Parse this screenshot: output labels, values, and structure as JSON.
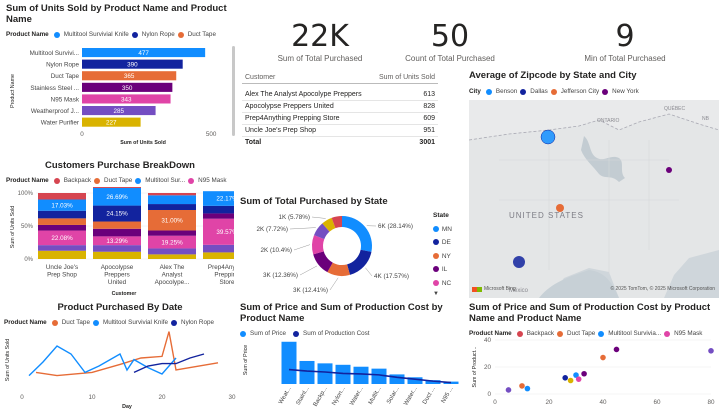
{
  "colors": {
    "multitool": "#118dff",
    "nylon": "#12239e",
    "duct": "#e66c37",
    "stainless": "#6b007b",
    "n95": "#e044a7",
    "weatherproof": "#744ec2",
    "water": "#d9b300",
    "backpack": "#d64550"
  },
  "bar_chart": {
    "title": "Sum of Units Sold by Product Name and Product Name",
    "legend_label": "Product Name",
    "legend": [
      "Multitool Survivial Knife",
      "Nylon Rope",
      "Duct Tape"
    ],
    "ylabel": "Product Name",
    "xlabel": "Sum of Units Sold",
    "ticks": [
      "0",
      "500"
    ]
  },
  "kpis": [
    {
      "value": "22K",
      "label": "Sum of Total Purchased"
    },
    {
      "value": "50",
      "label": "Count of Total Purchased"
    },
    {
      "value": "9",
      "label": "Min of Total Purchased"
    }
  ],
  "table": {
    "col1": "Customer",
    "col2": "Sum of Units Sold",
    "rows": [
      {
        "customer": "Alex The Analyst Apocolype Preppers",
        "units": "613"
      },
      {
        "customer": "Apocolypse Preppers United",
        "units": "828"
      },
      {
        "customer": "Prep4Anything Prepping Store",
        "units": "609"
      },
      {
        "customer": "Uncle Joe's Prep Shop",
        "units": "951"
      }
    ],
    "total_label": "Total",
    "total_value": "3001"
  },
  "map": {
    "title": "Average of Zipcode by State and City",
    "legend_label": "City",
    "legend": [
      "Benson",
      "Dallas",
      "Jefferson City",
      "New York"
    ],
    "labels": {
      "country": "UNITED STATES",
      "mexico": "México",
      "ontario": "ONTARIO",
      "quebec": "QUÉBEC",
      "nb": "NB"
    },
    "attribution": "Microsoft Bing",
    "copyright": "© 2025 TomTom, © 2025 Microsoft Corporation"
  },
  "stacked": {
    "title": "Customers Purchase BreakDown",
    "legend_label": "Product Name",
    "legend": [
      "Backpack",
      "Duct Tape",
      "Multitool Sur...",
      "N95 Mask"
    ],
    "ylabel": "Sum of Units Sold",
    "xlabel": "Customer",
    "yticks": [
      "100%",
      "50%",
      "0%"
    ]
  },
  "donut": {
    "title": "Sum of Total Purchased by State",
    "legend_label": "State",
    "legend": [
      "MN",
      "DE",
      "NY",
      "IL",
      "NC"
    ],
    "more_icon": "▼"
  },
  "line_chart": {
    "title": "Product Purchased By Date",
    "legend_label": "Product Name",
    "legend": [
      "Duct Tape",
      "Multitool Survivial Knife",
      "Nylon Rope"
    ],
    "ylabel": "Sum of Units Sold",
    "xlabel": "Day"
  },
  "combo": {
    "title": "Sum of Price and Sum of Production Cost by Product Name",
    "legend": [
      "Sum of Price",
      "Sum of Production Cost"
    ],
    "ylabel": "Sum of Price"
  },
  "scatter": {
    "title": "Sum of Price and Sum of Production Cost by Product Name and Product Name",
    "legend_label": "Product Name",
    "legend": [
      "Backpack",
      "Duct Tape",
      "Multitool Survivia...",
      "N95 Mask"
    ],
    "ylabel": "Sum of Product..."
  },
  "chart_data": [
    {
      "type": "bar",
      "id": "units-by-product",
      "categories": [
        "Multitool Survivi...",
        "Nylon Rope",
        "Duct Tape",
        "Stainless Steel ...",
        "N95 Mask",
        "Weatherproof J...",
        "Water Purifier"
      ],
      "values": [
        477,
        390,
        365,
        350,
        343,
        285,
        227
      ],
      "colors": [
        "#118dff",
        "#12239e",
        "#e66c37",
        "#6b007b",
        "#e044a7",
        "#744ec2",
        "#d9b300"
      ],
      "xlim": [
        0,
        550
      ]
    },
    {
      "type": "bar",
      "id": "customers-breakdown",
      "stacked": true,
      "categories": [
        "Uncle Joe's Prep Shop",
        "Apocolypse Preppers United",
        "Alex The Analyst Apocolype...",
        "Prep4Anyth... Prepping Store"
      ],
      "series": [
        {
          "color": "#d9b300",
          "values": [
            0.125,
            0.11,
            0.07,
            0.1
          ]
        },
        {
          "color": "#744ec2",
          "values": [
            0.085,
            0.1,
            0.09,
            0.115
          ]
        },
        {
          "color": "#e044a7",
          "values": [
            0.2208,
            0.1329,
            0.1925,
            0.3957
          ]
        },
        {
          "color": "#6b007b",
          "values": [
            0.085,
            0.115,
            0.08,
            0.08
          ]
        },
        {
          "color": "#e66c37",
          "values": [
            0.1,
            0.11,
            0.31,
            0.0
          ]
        },
        {
          "color": "#12239e",
          "values": [
            0.1153,
            0.2415,
            0.09,
            0.115
          ]
        },
        {
          "color": "#118dff",
          "values": [
            0.1703,
            0.2669,
            0.1325,
            0.2217
          ]
        },
        {
          "color": "#d64550",
          "values": [
            0.0986,
            0.1389,
            0.035,
            0.0
          ]
        }
      ],
      "labels": [
        {
          "col": 0,
          "series": 2,
          "text": "22.08%"
        },
        {
          "col": 0,
          "series": 6,
          "text": "17.03%"
        },
        {
          "col": 1,
          "series": 2,
          "text": "13.29%"
        },
        {
          "col": 1,
          "series": 5,
          "text": "24.15%"
        },
        {
          "col": 1,
          "series": 6,
          "text": "26.69%"
        },
        {
          "col": 1,
          "series": 7,
          "text": "13.89%"
        },
        {
          "col": 2,
          "series": 2,
          "text": "19.25%"
        },
        {
          "col": 2,
          "series": 4,
          "text": "31.00%"
        },
        {
          "col": 3,
          "series": 2,
          "text": "39.57%"
        },
        {
          "col": 3,
          "series": 6,
          "text": "22.17%"
        }
      ]
    },
    {
      "type": "pie",
      "id": "purchased-by-state",
      "donut": true,
      "slices": [
        {
          "label": "6K (28.14%)",
          "value": 28.14,
          "color": "#118dff"
        },
        {
          "label": "4K (17.57%)",
          "value": 17.57,
          "color": "#12239e"
        },
        {
          "label": "3K (12.41%)",
          "value": 12.41,
          "color": "#e66c37"
        },
        {
          "label": "3K (12.36%)",
          "value": 12.36,
          "color": "#6b007b"
        },
        {
          "label": "2K (10.4%)",
          "value": 10.4,
          "color": "#e044a7"
        },
        {
          "label": "2K (7.72%)",
          "value": 7.72,
          "color": "#744ec2"
        },
        {
          "label": "1K (5.78%)",
          "value": 5.78,
          "color": "#d9b300"
        },
        {
          "label": "",
          "value": 5.62,
          "color": "#d64550"
        }
      ]
    },
    {
      "type": "line",
      "id": "purchased-by-date",
      "xlim": [
        0,
        30
      ],
      "xticks": [
        0,
        10,
        20,
        30
      ],
      "ylim": [
        0,
        75
      ],
      "series": [
        {
          "color": "#e66c37",
          "points": [
            [
              2,
              22
            ],
            [
              5,
              18
            ],
            [
              10,
              22
            ],
            [
              14,
              32
            ],
            [
              17,
              40
            ],
            [
              20,
              42
            ],
            [
              21,
              73
            ],
            [
              22,
              25
            ],
            [
              24,
              28
            ],
            [
              28,
              34
            ]
          ]
        },
        {
          "color": "#118dff",
          "points": [
            [
              1,
              18
            ],
            [
              3,
              35
            ],
            [
              5,
              55
            ],
            [
              7,
              45
            ],
            [
              9,
              22
            ],
            [
              11,
              30
            ],
            [
              14,
              45
            ],
            [
              15,
              25
            ],
            [
              16,
              38
            ],
            [
              18,
              28
            ],
            [
              20,
              20
            ],
            [
              22,
              40
            ]
          ]
        },
        {
          "color": "#12239e",
          "points": [
            [
              16,
              22
            ],
            [
              18,
              30
            ],
            [
              20,
              33
            ],
            [
              22,
              33
            ],
            [
              24,
              40
            ],
            [
              26,
              45
            ]
          ]
        }
      ]
    },
    {
      "type": "bar",
      "id": "price-and-cost",
      "categories": [
        "Weat...",
        "Stainl...",
        "Backp...",
        "Nylon...",
        "Water...",
        "Multit...",
        "Solar...",
        "Water...",
        "Duct ...",
        "N95 ..."
      ],
      "values": [
        88,
        48,
        43,
        40,
        36,
        32,
        20,
        14,
        8,
        5
      ],
      "line_values": [
        30,
        27,
        25,
        22,
        21,
        19,
        14,
        10,
        6,
        3
      ],
      "ylim": [
        0,
        100
      ]
    },
    {
      "type": "scatter",
      "id": "price-cost-scatter",
      "xlim": [
        0,
        80
      ],
      "ylim": [
        0,
        40
      ],
      "xticks": [
        0,
        20,
        40,
        60,
        80
      ],
      "yticks": [
        0,
        20,
        40
      ],
      "points": [
        {
          "x": 5,
          "y": 3,
          "color": "#744ec2"
        },
        {
          "x": 10,
          "y": 6,
          "color": "#e66c37"
        },
        {
          "x": 12,
          "y": 4,
          "color": "#118dff"
        },
        {
          "x": 26,
          "y": 12,
          "color": "#12239e"
        },
        {
          "x": 28,
          "y": 10,
          "color": "#d9b300"
        },
        {
          "x": 30,
          "y": 14,
          "color": "#118dff"
        },
        {
          "x": 31,
          "y": 11,
          "color": "#e044a7"
        },
        {
          "x": 33,
          "y": 15,
          "color": "#6b007b"
        },
        {
          "x": 40,
          "y": 27,
          "color": "#e66c37"
        },
        {
          "x": 45,
          "y": 33,
          "color": "#6b007b"
        },
        {
          "x": 80,
          "y": 32,
          "color": "#744ec2"
        }
      ]
    }
  ]
}
